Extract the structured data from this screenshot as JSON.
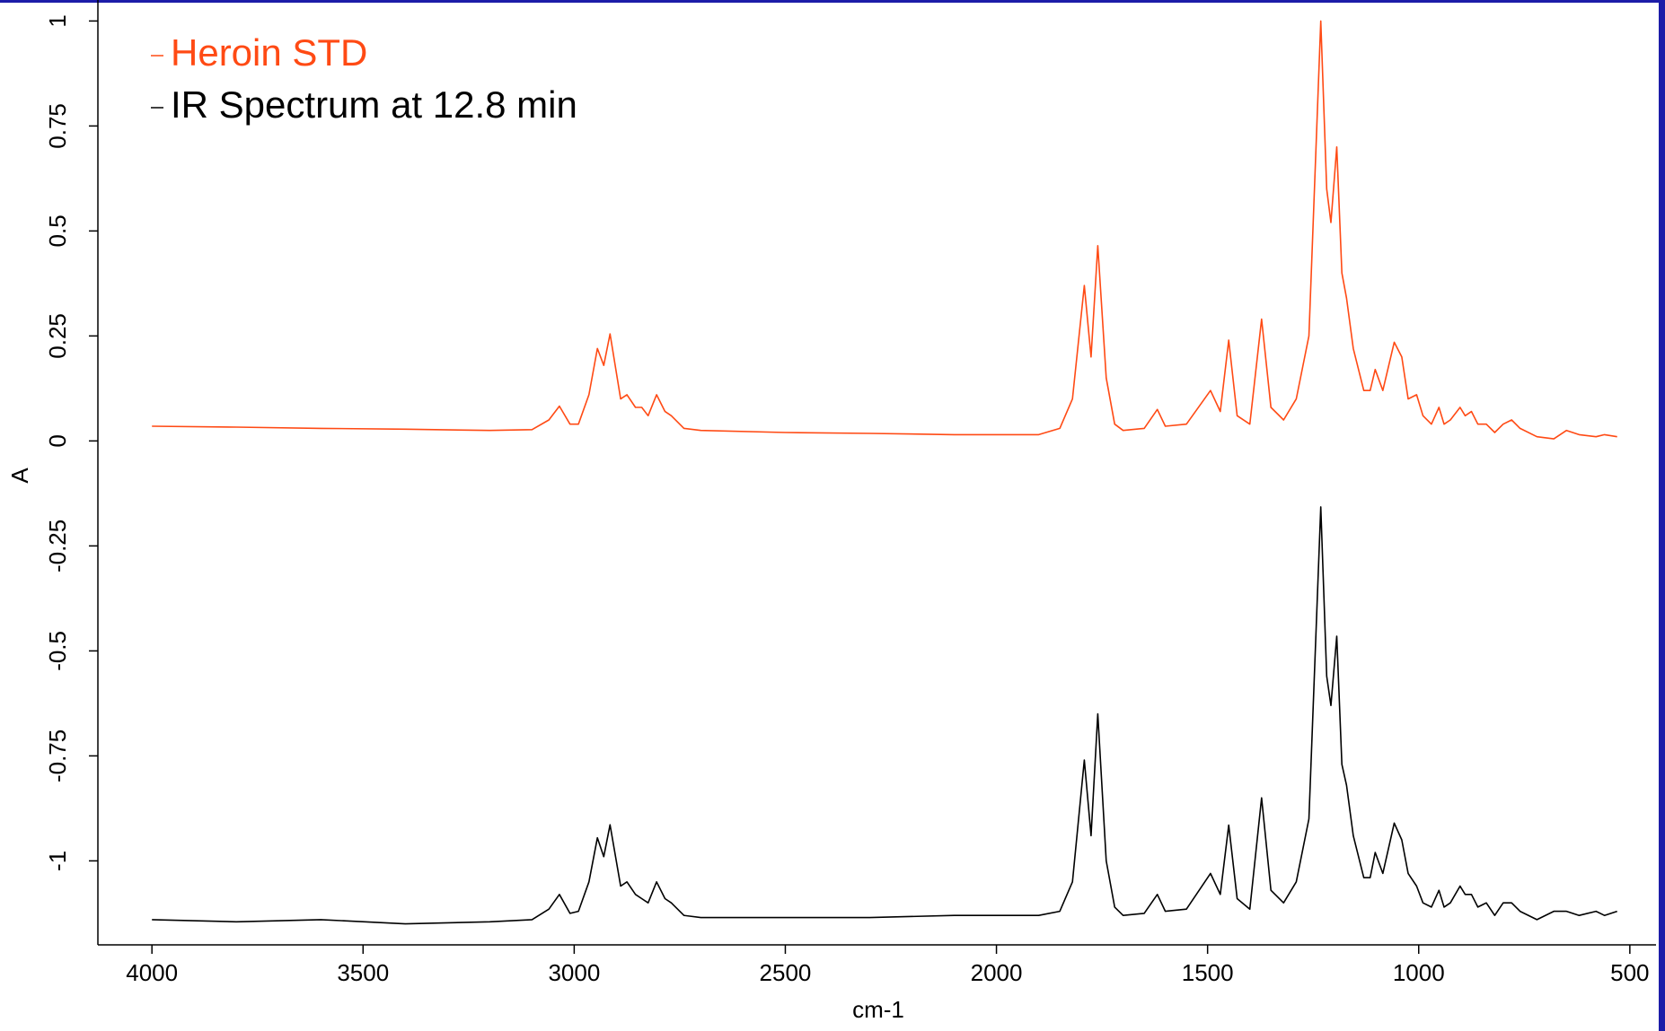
{
  "chart_data": {
    "type": "line",
    "x_label": "cm-1",
    "y_label": "A",
    "x": [
      4000,
      3800,
      3600,
      3400,
      3200,
      3100,
      3060,
      3035,
      3010,
      2990,
      2965,
      2945,
      2930,
      2915,
      2890,
      2875,
      2855,
      2840,
      2825,
      2805,
      2785,
      2770,
      2740,
      2700,
      2500,
      2300,
      2100,
      1900,
      1850,
      1820,
      1792,
      1776,
      1760,
      1740,
      1720,
      1700,
      1650,
      1619,
      1600,
      1550,
      1493,
      1470,
      1450,
      1430,
      1400,
      1372,
      1350,
      1320,
      1290,
      1260,
      1232,
      1218,
      1208,
      1194,
      1182,
      1171,
      1155,
      1130,
      1115,
      1103,
      1085,
      1058,
      1040,
      1025,
      1005,
      990,
      970,
      952,
      940,
      925,
      902,
      890,
      875,
      860,
      840,
      820,
      800,
      780,
      760,
      720,
      680,
      650,
      620,
      580,
      560,
      530
    ],
    "series": [
      {
        "name": "Heroin STD",
        "color": "#ff4a14",
        "values": [
          0.035,
          0.033,
          0.03,
          0.028,
          0.025,
          0.027,
          0.05,
          0.083,
          0.04,
          0.04,
          0.11,
          0.22,
          0.18,
          0.255,
          0.1,
          0.11,
          0.08,
          0.08,
          0.06,
          0.11,
          0.07,
          0.06,
          0.03,
          0.025,
          0.02,
          0.018,
          0.015,
          0.015,
          0.03,
          0.1,
          0.37,
          0.2,
          0.465,
          0.15,
          0.04,
          0.025,
          0.03,
          0.075,
          0.035,
          0.04,
          0.12,
          0.07,
          0.24,
          0.06,
          0.04,
          0.29,
          0.08,
          0.05,
          0.1,
          0.25,
          1.0,
          0.6,
          0.52,
          0.7,
          0.4,
          0.34,
          0.22,
          0.12,
          0.12,
          0.17,
          0.12,
          0.235,
          0.2,
          0.1,
          0.11,
          0.06,
          0.04,
          0.08,
          0.04,
          0.05,
          0.08,
          0.06,
          0.07,
          0.04,
          0.04,
          0.02,
          0.04,
          0.05,
          0.03,
          0.01,
          0.005,
          0.025,
          0.015,
          0.01,
          0.015,
          0.01
        ]
      },
      {
        "name": "IR Spectrum at 12.8 min",
        "color": "#000000",
        "values": [
          -1.14,
          -1.145,
          -1.14,
          -1.15,
          -1.145,
          -1.14,
          -1.115,
          -1.08,
          -1.125,
          -1.12,
          -1.05,
          -0.945,
          -0.99,
          -0.914,
          -1.06,
          -1.05,
          -1.08,
          -1.09,
          -1.1,
          -1.05,
          -1.09,
          -1.1,
          -1.13,
          -1.135,
          -1.135,
          -1.135,
          -1.13,
          -1.13,
          -1.12,
          -1.05,
          -0.76,
          -0.94,
          -0.65,
          -1.0,
          -1.11,
          -1.13,
          -1.125,
          -1.08,
          -1.12,
          -1.115,
          -1.03,
          -1.08,
          -0.915,
          -1.09,
          -1.115,
          -0.85,
          -1.07,
          -1.1,
          -1.05,
          -0.9,
          -0.157,
          -0.56,
          -0.63,
          -0.465,
          -0.77,
          -0.82,
          -0.94,
          -1.04,
          -1.04,
          -0.98,
          -1.03,
          -0.91,
          -0.95,
          -1.03,
          -1.06,
          -1.1,
          -1.11,
          -1.07,
          -1.11,
          -1.1,
          -1.06,
          -1.08,
          -1.08,
          -1.11,
          -1.1,
          -1.13,
          -1.1,
          -1.1,
          -1.12,
          -1.14,
          -1.12,
          -1.12,
          -1.13,
          -1.12,
          -1.13,
          -1.12
        ]
      }
    ],
    "xlim": [
      4128,
      438
    ],
    "xticks": [
      4000,
      3500,
      3000,
      2500,
      2000,
      1500,
      1000,
      500
    ],
    "ylim": [
      -1.2,
      1.05
    ],
    "yticks": [
      1,
      0.75,
      0.5,
      0.25,
      0,
      -0.25,
      -0.5,
      -0.75,
      -1
    ],
    "legend": "top-left"
  }
}
